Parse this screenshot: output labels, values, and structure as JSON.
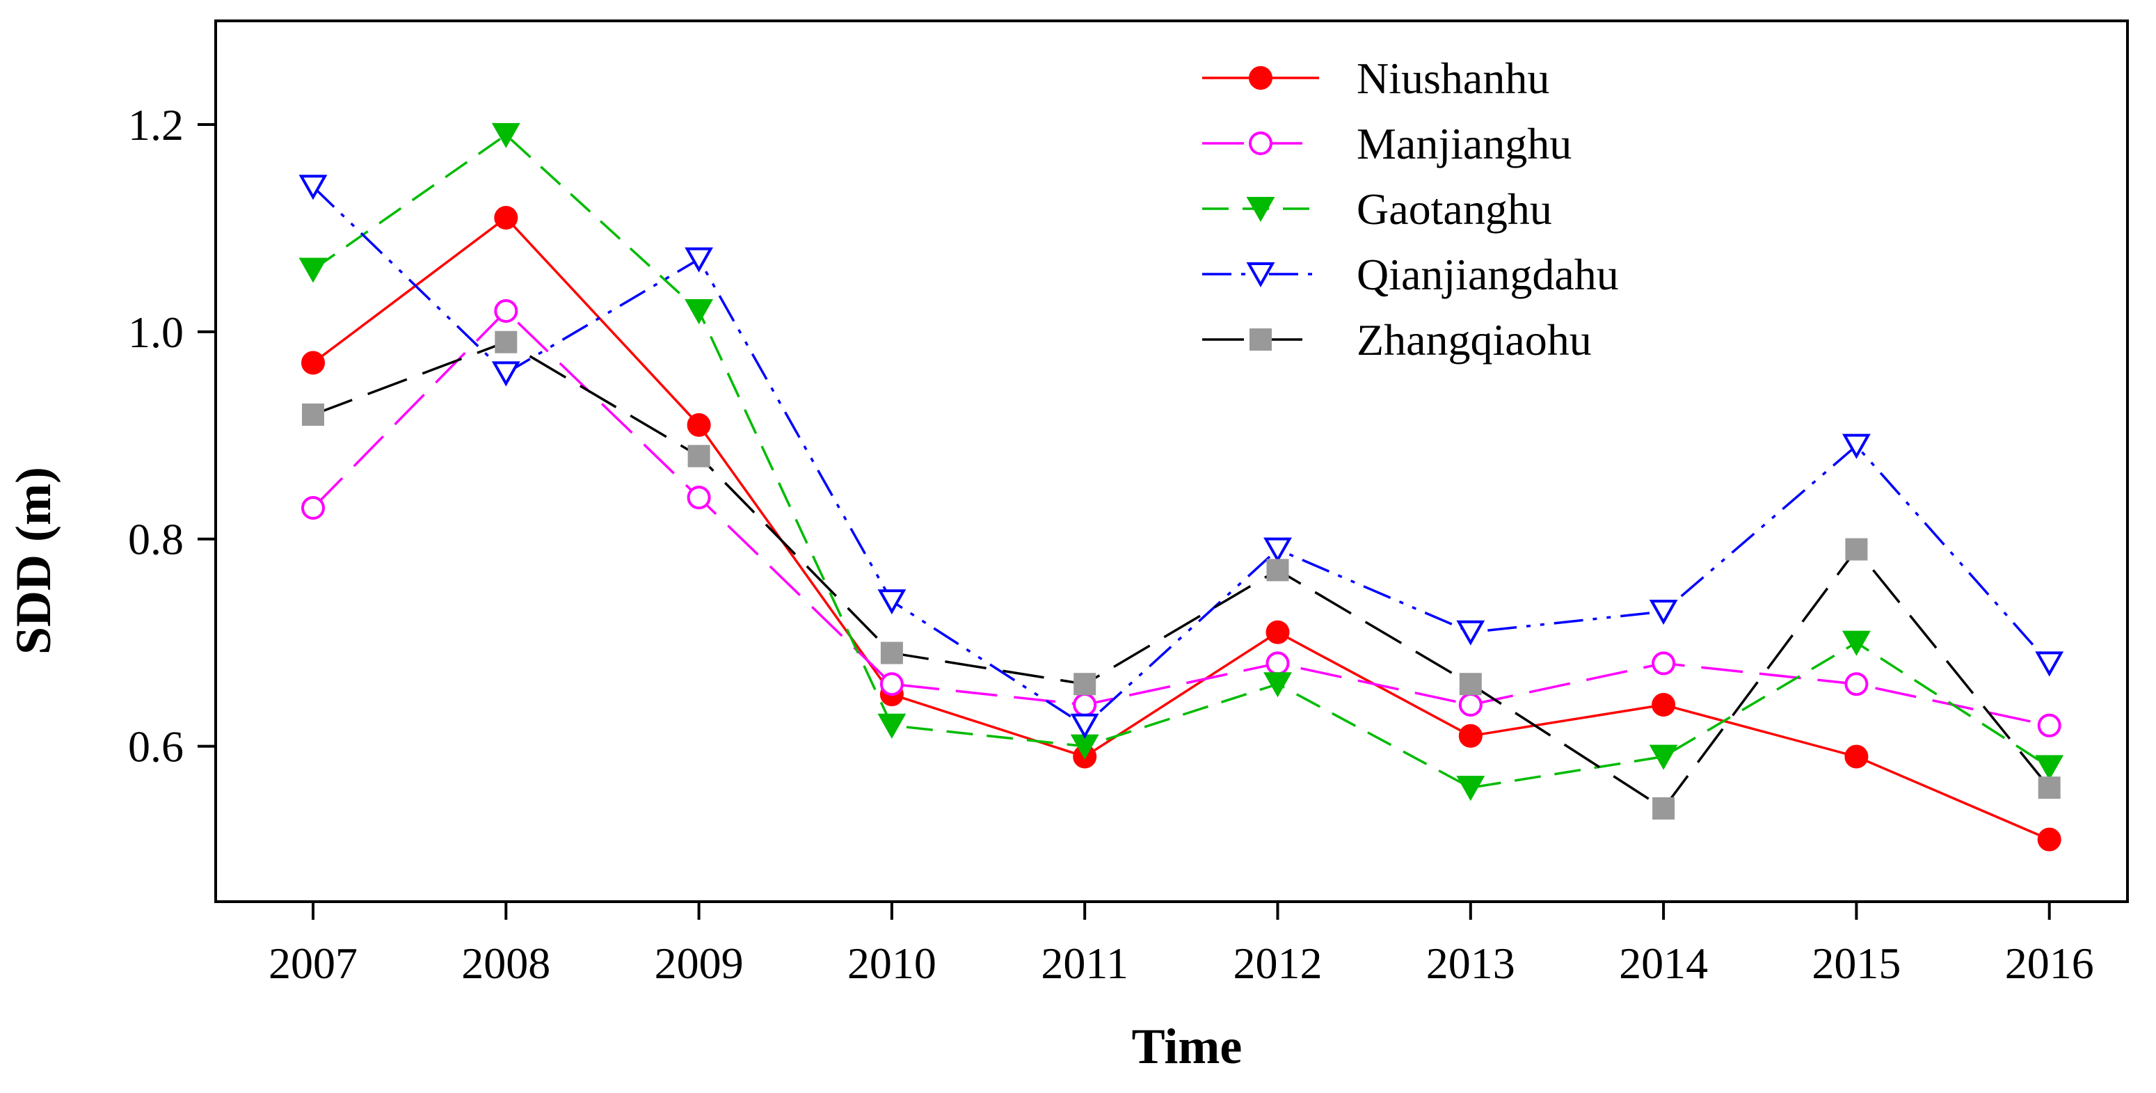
{
  "chart_data": {
    "type": "line",
    "title": "",
    "xlabel": "Time",
    "ylabel": "SDD (m)",
    "x": [
      "2007",
      "2008",
      "2009",
      "2010",
      "2011",
      "2012",
      "2013",
      "2014",
      "2015",
      "2016"
    ],
    "yticks": [
      "0.6",
      "0.8",
      "1.0",
      "1.2"
    ],
    "ylim": [
      0.45,
      1.3
    ],
    "legend_position": "top-right",
    "series": [
      {
        "name": "Niushanhu",
        "color": "#ff0000",
        "marker": "circle",
        "filled": true,
        "line_style": "solid",
        "values": [
          0.97,
          1.11,
          0.91,
          0.65,
          0.59,
          0.71,
          0.61,
          0.64,
          0.59,
          0.51
        ]
      },
      {
        "name": "Manjianghu",
        "color": "#ff00ff",
        "marker": "circle",
        "filled": false,
        "line_style": "long-dash",
        "values": [
          0.83,
          1.02,
          0.84,
          0.66,
          0.64,
          0.68,
          0.64,
          0.68,
          0.66,
          0.62
        ]
      },
      {
        "name": "Gaotanghu",
        "color": "#00bb00",
        "marker": "triangle-down",
        "filled": true,
        "line_style": "dash",
        "values": [
          1.06,
          1.19,
          1.02,
          0.62,
          0.6,
          0.66,
          0.56,
          0.59,
          0.7,
          0.58
        ]
      },
      {
        "name": "Qianjiangdahu",
        "color": "#0000ff",
        "marker": "triangle-down",
        "filled": false,
        "line_style": "dash-dot-dot",
        "values": [
          1.14,
          0.96,
          1.07,
          0.74,
          0.62,
          0.79,
          0.71,
          0.73,
          0.89,
          0.68
        ]
      },
      {
        "name": "Zhangqiaohu",
        "color": "#000000",
        "marker_color": "#999999",
        "marker": "square",
        "filled": true,
        "line_style": "long-dash",
        "values": [
          0.92,
          0.99,
          0.88,
          0.69,
          0.66,
          0.77,
          0.66,
          0.54,
          0.79,
          0.56
        ]
      }
    ]
  }
}
